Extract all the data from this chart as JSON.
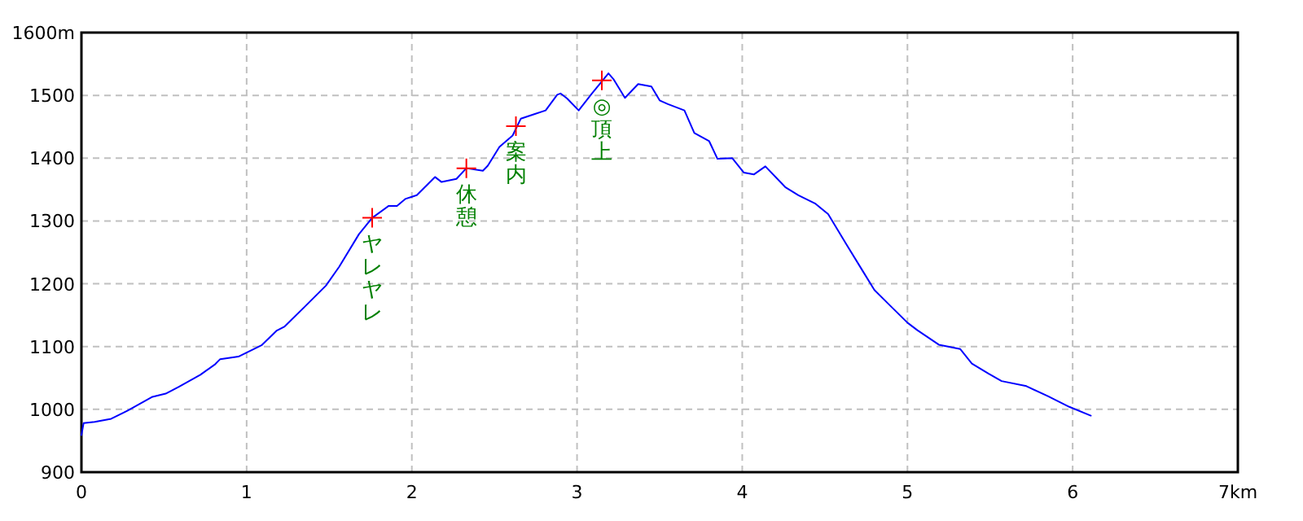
{
  "chart_data": {
    "type": "line",
    "series": [
      {
        "color": "#0000ff",
        "x": [
          0,
          0.013,
          0.08,
          0.18,
          0.28,
          0.43,
          0.51,
          0.59,
          0.72,
          0.81,
          0.84,
          0.95,
          1.09,
          1.18,
          1.23,
          1.35,
          1.48,
          1.56,
          1.68,
          1.76,
          1.86,
          1.91,
          1.96,
          2.03,
          2.14,
          2.18,
          2.27,
          2.33,
          2.43,
          2.46,
          2.53,
          2.61,
          2.66,
          2.73,
          2.81,
          2.88,
          2.9,
          2.94,
          3.01,
          3.09,
          3.19,
          3.22,
          3.29,
          3.37,
          3.45,
          3.5,
          3.55,
          3.65,
          3.71,
          3.8,
          3.85,
          3.94,
          4.01,
          4.07,
          4.14,
          4.26,
          4.34,
          4.44,
          4.52,
          4.63,
          4.73,
          4.8,
          4.9,
          5.0,
          5.06,
          5.19,
          5.32,
          5.39,
          5.49,
          5.57,
          5.72,
          5.85,
          5.98,
          6.11
        ],
        "values": [
          959,
          978,
          980,
          985,
          998,
          1020,
          1025,
          1036,
          1055,
          1072,
          1080,
          1084,
          1102,
          1125,
          1132,
          1163,
          1197,
          1227,
          1279,
          1305,
          1324,
          1324,
          1335,
          1341,
          1370,
          1362,
          1367,
          1384,
          1380,
          1388,
          1418,
          1436,
          1463,
          1469,
          1476,
          1501,
          1503,
          1495,
          1476,
          1503,
          1535,
          1526,
          1496,
          1518,
          1514,
          1492,
          1486,
          1476,
          1440,
          1427,
          1399,
          1400,
          1377,
          1374,
          1387,
          1354,
          1341,
          1328,
          1311,
          1263,
          1220,
          1190,
          1164,
          1138,
          1126,
          1103,
          1096,
          1073,
          1057,
          1045,
          1037,
          1021,
          1004,
          990
        ]
      }
    ],
    "xlim": [
      0,
      7
    ],
    "ylim": [
      900,
      1600
    ],
    "xticks": [
      0,
      1,
      2,
      3,
      4,
      5,
      6,
      {
        "value": 7,
        "label": "7km"
      }
    ],
    "yticks": [
      900,
      1000,
      1100,
      1200,
      1300,
      1400,
      1500,
      {
        "value": 1600,
        "label": "1600m"
      }
    ],
    "grid": true,
    "annotations": [
      {
        "text": "ヤレヤレ",
        "x": 1.76,
        "y": 1305
      },
      {
        "text": "休憩",
        "x": 2.33,
        "y": 1384
      },
      {
        "text": "案内",
        "x": 2.63,
        "y": 1451
      },
      {
        "text": "◎頂上",
        "x": 3.15,
        "y": 1524
      }
    ]
  }
}
